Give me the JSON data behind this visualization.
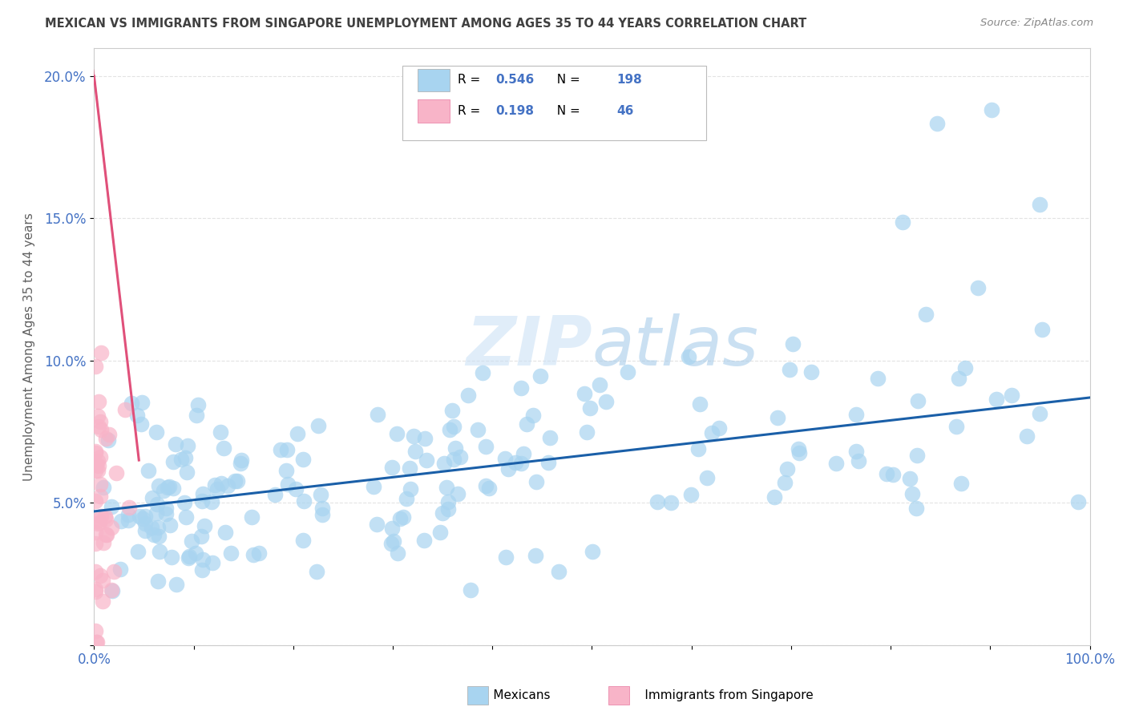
{
  "title": "MEXICAN VS IMMIGRANTS FROM SINGAPORE UNEMPLOYMENT AMONG AGES 35 TO 44 YEARS CORRELATION CHART",
  "source": "Source: ZipAtlas.com",
  "ylabel": "Unemployment Among Ages 35 to 44 years",
  "xlim": [
    0.0,
    1.0
  ],
  "ylim": [
    0.0,
    0.21
  ],
  "x_tick_vals": [
    0.0,
    1.0
  ],
  "x_tick_labels": [
    "0.0%",
    "100.0%"
  ],
  "y_ticks": [
    0.0,
    0.05,
    0.1,
    0.15,
    0.2
  ],
  "y_tick_labels": [
    "",
    "5.0%",
    "10.0%",
    "15.0%",
    "20.0%"
  ],
  "mexican_R": 0.546,
  "mexican_N": 198,
  "singapore_R": 0.198,
  "singapore_N": 46,
  "mexican_color": "#a8d4f0",
  "singapore_color": "#f8b4c8",
  "mexican_line_color": "#1a5fa8",
  "singapore_line_color": "#e0507a",
  "watermark_color": "#ddeeff",
  "background_color": "#ffffff",
  "grid_color": "#e0e0e0",
  "title_color": "#404040",
  "axis_label_color": "#606060",
  "tick_color": "#4472c4",
  "stats_color": "#4472c4"
}
